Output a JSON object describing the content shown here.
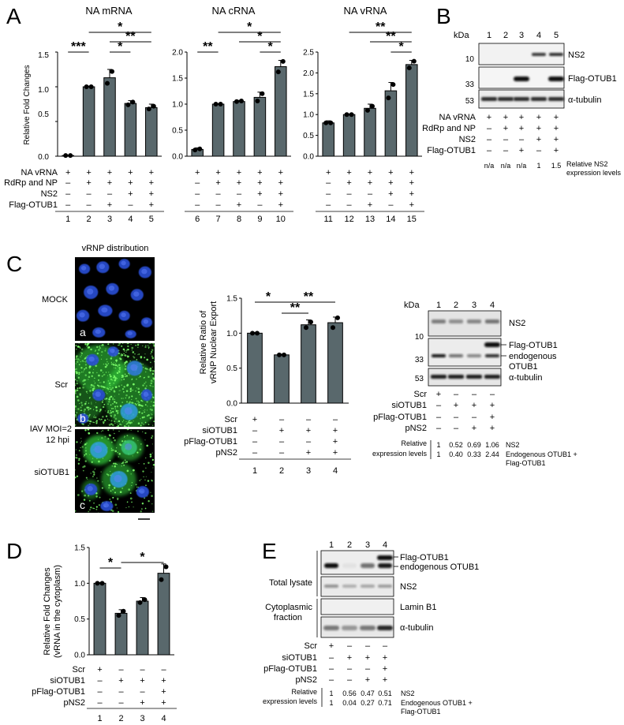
{
  "colors": {
    "bar": "#59686c",
    "axis": "#000000",
    "blot_bg": "#e2e2e2",
    "band": "#262626",
    "nuclei": "#2a4fd6",
    "vrnp": "#34d13c"
  },
  "panels": {
    "A": "A",
    "B": "B",
    "C": "C",
    "D": "D",
    "E": "E"
  },
  "pm": {
    "plus": "+",
    "minus": "–",
    "na": "n/a"
  },
  "panelA": {
    "ylabel": "Relative Fold Changes",
    "yticks": [
      "0.0",
      "0.5",
      "1.0",
      "1.5"
    ],
    "row_labels": [
      "NA vRNA",
      "RdRp and NP",
      "NS2",
      "Flag-OTUB1"
    ],
    "conditions": [
      [
        "+",
        "–",
        "–",
        "–"
      ],
      [
        "+",
        "+",
        "–",
        "–"
      ],
      [
        "+",
        "+",
        "–",
        "+"
      ],
      [
        "+",
        "+",
        "+",
        "–"
      ],
      [
        "+",
        "+",
        "+",
        "+"
      ]
    ],
    "subplots": [
      {
        "title": "NA mRNA",
        "lanes": [
          "1",
          "2",
          "3",
          "4",
          "5"
        ],
        "sig": [
          "***",
          "*",
          "**",
          "*"
        ]
      },
      {
        "title": "NA cRNA",
        "lanes": [
          "6",
          "7",
          "8",
          "9",
          "10"
        ],
        "sig": [
          "**",
          "*",
          "*",
          "*"
        ]
      },
      {
        "title": "NA vRNA",
        "lanes": [
          "11",
          "12",
          "13",
          "14",
          "15"
        ],
        "sig": [
          "**",
          "**",
          "*"
        ]
      }
    ]
  },
  "chart_data": [
    {
      "type": "bar",
      "title": "NA mRNA",
      "categories": [
        "1",
        "2",
        "3",
        "4",
        "5"
      ],
      "values": [
        0.01,
        1.0,
        1.13,
        0.76,
        0.7
      ],
      "errors": [
        0.005,
        0.01,
        0.12,
        0.04,
        0.05
      ],
      "points": [
        [
          0.01,
          0.01
        ],
        [
          1.0,
          1.0
        ],
        [
          1.05,
          1.22
        ],
        [
          0.74,
          0.78
        ],
        [
          0.68,
          0.72
        ]
      ],
      "ylabel": "Relative Fold Changes",
      "ylim": [
        0,
        1.5
      ]
    },
    {
      "type": "bar",
      "title": "NA cRNA",
      "categories": [
        "6",
        "7",
        "8",
        "9",
        "10"
      ],
      "values": [
        0.13,
        1.0,
        1.05,
        1.13,
        1.72
      ],
      "errors": [
        0.03,
        0.01,
        0.02,
        0.1,
        0.12
      ],
      "points": [
        [
          0.12,
          0.14
        ],
        [
          1.0,
          1.0
        ],
        [
          1.05,
          1.06
        ],
        [
          1.06,
          1.2
        ],
        [
          1.62,
          1.82
        ]
      ],
      "ylim": [
        0,
        2.0
      ]
    },
    {
      "type": "bar",
      "title": "NA vRNA",
      "categories": [
        "11",
        "12",
        "13",
        "14",
        "15"
      ],
      "values": [
        0.8,
        1.0,
        1.15,
        1.57,
        2.2
      ],
      "errors": [
        0.05,
        0.01,
        0.1,
        0.2,
        0.1
      ],
      "points": [
        [
          0.8,
          0.8
        ],
        [
          1.0,
          1.0
        ],
        [
          1.1,
          1.2
        ],
        [
          1.4,
          1.72
        ],
        [
          2.12,
          2.28
        ]
      ],
      "ylim": [
        0,
        2.5
      ]
    },
    {
      "type": "bar",
      "ylabel": "Relative Ratio of vRNP Nuclear Export",
      "categories": [
        "1",
        "2",
        "3",
        "4"
      ],
      "values": [
        1.0,
        0.69,
        1.12,
        1.15
      ],
      "errors": [
        0.01,
        0.01,
        0.07,
        0.08
      ],
      "points": [
        [
          1.0,
          1.0
        ],
        [
          0.69,
          0.69
        ],
        [
          1.08,
          1.16
        ],
        [
          1.08,
          1.22
        ]
      ],
      "ylim": [
        0,
        1.5
      ]
    },
    {
      "type": "bar",
      "ylabel": "Relative Fold Changes (vRNA in the cytoplasm)",
      "categories": [
        "1",
        "2",
        "3",
        "4"
      ],
      "values": [
        1.0,
        0.58,
        0.75,
        1.14
      ],
      "errors": [
        0.01,
        0.05,
        0.05,
        0.13
      ],
      "points": [
        [
          1.0,
          1.0
        ],
        [
          0.55,
          0.61
        ],
        [
          0.73,
          0.77
        ],
        [
          1.05,
          1.23
        ]
      ],
      "ylim": [
        0,
        1.5
      ]
    }
  ],
  "panelB": {
    "kda": "kDa",
    "lanes": [
      "1",
      "2",
      "3",
      "4",
      "5"
    ],
    "markers": [
      "10",
      "33",
      "53"
    ],
    "blot_labels": [
      "NS2",
      "Flag-OTUB1",
      "α-tubulin"
    ],
    "row_labels": [
      "NA vRNA",
      "RdRp and NP",
      "NS2",
      "Flag-OTUB1"
    ],
    "conditions": [
      [
        "+",
        "–",
        "–",
        "–"
      ],
      [
        "+",
        "+",
        "–",
        "–"
      ],
      [
        "+",
        "+",
        "–",
        "+"
      ],
      [
        "+",
        "+",
        "+",
        "–"
      ],
      [
        "+",
        "+",
        "+",
        "+"
      ]
    ],
    "levels": [
      "n/a",
      "n/a",
      "n/a",
      "1",
      "1.5"
    ],
    "levels_label_1": "Relative NS2",
    "levels_label_2": "expression levels"
  },
  "panelC": {
    "micro_title": "vRNP distribution",
    "rows": [
      "MOCK",
      "Scr",
      "siOTUB1"
    ],
    "tags": [
      "a",
      "b",
      "c"
    ],
    "infection_1": "IAV MOI=2",
    "infection_2": "12 hpi",
    "chart_ylabel_1": "Relative Ratio of",
    "chart_ylabel_2": "vRNP Nuclear Export",
    "yticks": [
      "0.0",
      "0.5",
      "1.0",
      "1.5"
    ],
    "sig": [
      "*",
      "**",
      "**"
    ],
    "row_labels": [
      "Scr",
      "siOTUB1",
      "pFlag-OTUB1",
      "pNS2"
    ],
    "conditions": [
      [
        "+",
        "–",
        "–",
        "–"
      ],
      [
        "–",
        "+",
        "–",
        "–"
      ],
      [
        "–",
        "+",
        "–",
        "+"
      ],
      [
        "–",
        "+",
        "+",
        "+"
      ]
    ],
    "lanes": [
      "1",
      "2",
      "3",
      "4"
    ],
    "kda": "kDa",
    "blot_lanes": [
      "1",
      "2",
      "3",
      "4"
    ],
    "markers": [
      "10",
      "33",
      "53"
    ],
    "blot_labels": [
      "NS2",
      "Flag-OTUB1",
      "endogenous",
      "OTUB1",
      "α-tubulin"
    ],
    "levels_head_1": "Relative",
    "levels_head_2": "expression levels",
    "ns2_levels": [
      "1",
      "0.52",
      "0.69",
      "1.06"
    ],
    "otub1_levels": [
      "1",
      "0.40",
      "0.33",
      "2.44"
    ],
    "levels_lab1": "NS2",
    "levels_lab2a": "Endogenous OTUB1 +",
    "levels_lab2b": "Flag-OTUB1"
  },
  "panelD": {
    "ylabel_1": "Relative Fold Changes",
    "ylabel_2": "(vRNA in the cytoplasm)",
    "yticks": [
      "0.0",
      "0.5",
      "1.0",
      "1.5"
    ],
    "sig": [
      "*",
      "*"
    ],
    "row_labels": [
      "Scr",
      "siOTUB1",
      "pFlag-OTUB1",
      "pNS2"
    ],
    "conditions": [
      [
        "+",
        "–",
        "–",
        "–"
      ],
      [
        "–",
        "+",
        "–",
        "–"
      ],
      [
        "–",
        "+",
        "–",
        "+"
      ],
      [
        "–",
        "+",
        "+",
        "+"
      ]
    ],
    "lanes": [
      "1",
      "2",
      "3",
      "4"
    ]
  },
  "panelE": {
    "lanes": [
      "1",
      "2",
      "3",
      "4"
    ],
    "group1": "Total lysate",
    "group2_1": "Cytoplasmic",
    "group2_2": "fraction",
    "blot_labels": [
      "Flag-OTUB1",
      "endogenous OTUB1",
      "NS2",
      "Lamin B1",
      "α-tubulin"
    ],
    "row_labels": [
      "Scr",
      "siOTUB1",
      "pFlag-OTUB1",
      "pNS2"
    ],
    "conditions": [
      [
        "+",
        "–",
        "–",
        "–"
      ],
      [
        "–",
        "+",
        "–",
        "–"
      ],
      [
        "–",
        "+",
        "–",
        "+"
      ],
      [
        "–",
        "+",
        "+",
        "+"
      ]
    ],
    "levels_head_1": "Relative",
    "levels_head_2": "expression levels",
    "ns2_levels": [
      "1",
      "0.56",
      "0.47",
      "0.51"
    ],
    "otub1_levels": [
      "1",
      "0.04",
      "0.27",
      "0.71"
    ],
    "levels_lab1": "NS2",
    "levels_lab2a": "Endogenous OTUB1 +",
    "levels_lab2b": "Flag-OTUB1"
  }
}
